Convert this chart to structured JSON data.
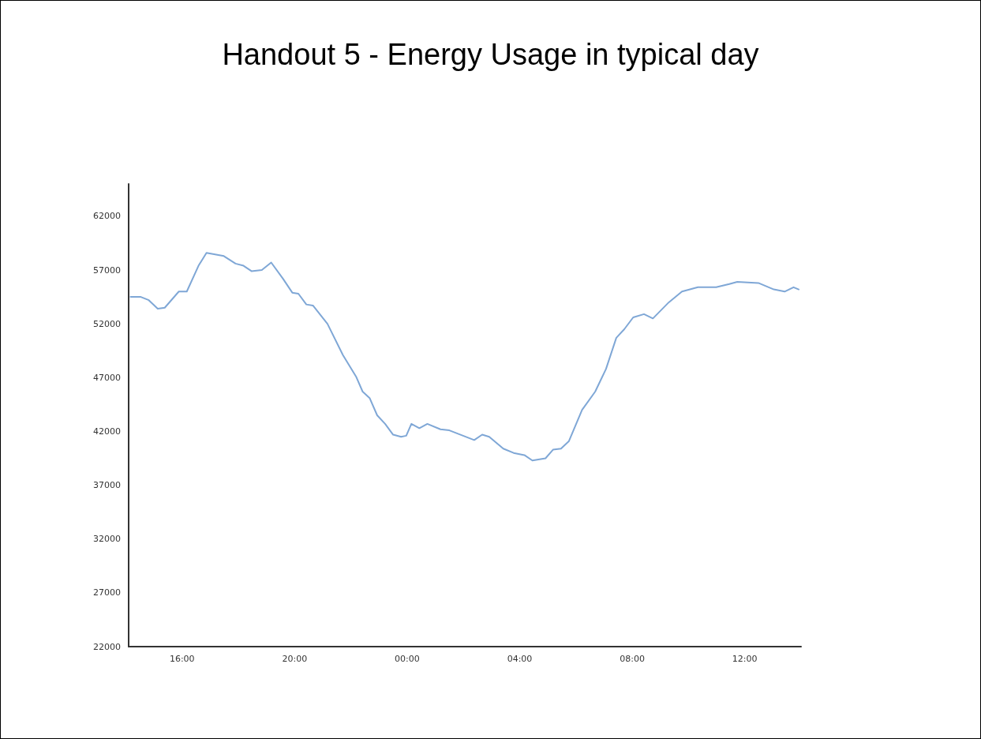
{
  "chart_data": {
    "type": "line",
    "title": "Handout 5 - Energy Usage in typical day",
    "x": [
      "2000-01-01T14:10",
      "2000-01-01T14:32",
      "2000-01-01T14:49",
      "2000-01-01T15:08",
      "2000-01-01T15:23",
      "2000-01-01T15:53",
      "2000-01-01T16:10",
      "2000-01-01T16:35",
      "2000-01-01T16:52",
      "2000-01-01T17:29",
      "2000-01-01T17:54",
      "2000-01-01T18:11",
      "2000-01-01T18:28",
      "2000-01-01T18:50",
      "2000-01-01T19:10",
      "2000-01-01T19:35",
      "2000-01-01T19:55",
      "2000-01-01T20:08",
      "2000-01-01T20:25",
      "2000-01-01T20:39",
      "2000-01-01T21:10",
      "2000-01-01T21:43",
      "2000-01-01T22:11",
      "2000-01-01T22:25",
      "2000-01-01T22:40",
      "2000-01-01T22:56",
      "2000-01-01T23:13",
      "2000-01-01T23:30",
      "2000-01-01T23:47",
      "2000-01-01T23:58",
      "2000-01-02T00:09",
      "2000-01-02T00:26",
      "2000-01-02T00:43",
      "2000-01-02T01:11",
      "2000-01-02T01:30",
      "2000-01-02T02:23",
      "2000-01-02T02:40",
      "2000-01-02T02:55",
      "2000-01-02T03:25",
      "2000-01-02T03:47",
      "2000-01-02T04:10",
      "2000-01-02T04:27",
      "2000-01-02T04:55",
      "2000-01-02T05:11",
      "2000-01-02T05:28",
      "2000-01-02T05:45",
      "2000-01-02T06:13",
      "2000-01-02T06:41",
      "2000-01-02T07:04",
      "2000-01-02T07:26",
      "2000-01-02T07:43",
      "2000-01-02T08:02",
      "2000-01-02T08:25",
      "2000-01-02T08:44",
      "2000-01-02T09:18",
      "2000-01-02T09:46",
      "2000-01-02T10:20",
      "2000-01-02T10:59",
      "2000-01-02T11:27",
      "2000-01-02T11:44",
      "2000-01-02T12:29",
      "2000-01-02T13:02",
      "2000-01-02T13:25",
      "2000-01-02T13:44",
      "2000-01-02T13:55"
    ],
    "series": [
      {
        "color": "#7fa7d6",
        "values": [
          54500,
          54500,
          54200,
          53400,
          53500,
          55000,
          55000,
          57400,
          58600,
          58300,
          57600,
          57400,
          56900,
          57000,
          57700,
          56200,
          54900,
          54800,
          53800,
          53700,
          52000,
          49100,
          47100,
          45700,
          45100,
          43500,
          42700,
          41700,
          41500,
          41600,
          42700,
          42300,
          42700,
          42200,
          42100,
          41200,
          41700,
          41500,
          40400,
          40000,
          39800,
          39300,
          39500,
          40300,
          40400,
          41100,
          44000,
          45700,
          47800,
          50700,
          51500,
          52600,
          52900,
          52500,
          54000,
          55000,
          55400,
          55400,
          55700,
          55900,
          55800,
          55200,
          55000,
          55400,
          55200
        ]
      }
    ],
    "xlim": [
      "2000-01-01T14:06",
      "2000-01-02T14:00"
    ],
    "xticks": [
      {
        "value": "2000-01-01T16:00",
        "label": "16:00"
      },
      {
        "value": "2000-01-01T20:00",
        "label": "20:00"
      },
      {
        "value": "2000-01-02T00:00",
        "label": "00:00"
      },
      {
        "value": "2000-01-02T04:00",
        "label": "04:00"
      },
      {
        "value": "2000-01-02T08:00",
        "label": "08:00"
      },
      {
        "value": "2000-01-02T12:00",
        "label": "12:00"
      }
    ],
    "ylim": [
      22000,
      65000
    ],
    "yticks": [
      22000,
      27000,
      32000,
      37000,
      42000,
      47000,
      52000,
      57000,
      62000
    ],
    "grid": false,
    "marker": "none",
    "line_style": "solid"
  }
}
